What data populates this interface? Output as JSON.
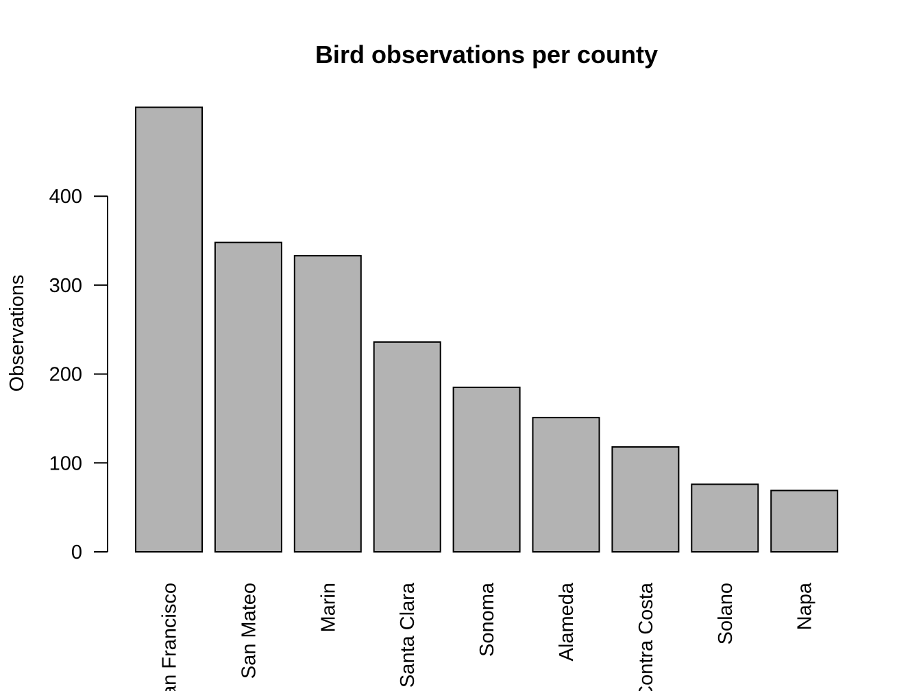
{
  "chart_data": {
    "type": "bar",
    "title": "Bird observations per county",
    "xlabel": "",
    "ylabel": "Observations",
    "categories": [
      "San Francisco",
      "San Mateo",
      "Marin",
      "Santa Clara",
      "Sonoma",
      "Alameda",
      "Contra Costa",
      "Solano",
      "Napa"
    ],
    "values": [
      500,
      348,
      333,
      236,
      185,
      151,
      118,
      76,
      69
    ],
    "y_ticks": [
      0,
      100,
      200,
      300,
      400
    ],
    "ylim": [
      0,
      500
    ],
    "grid": false,
    "legend": "none",
    "bar_color": "#b3b3b3",
    "bar_border_color": "#000000"
  }
}
